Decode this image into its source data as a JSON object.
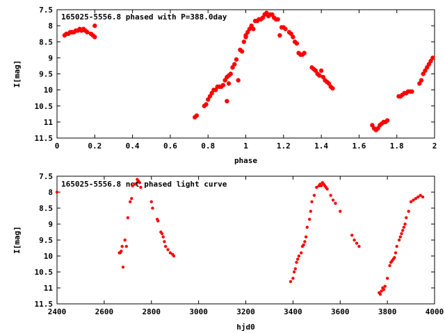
{
  "chart_data": [
    {
      "type": "scatter",
      "title": "165025-5556.8 phased with P=388.0day",
      "xlabel": "phase",
      "ylabel": "I[mag]",
      "xlim": [
        0,
        2
      ],
      "ylim": [
        11.5,
        7.5
      ],
      "y_inverted": true,
      "grid": false,
      "legend": "none",
      "color": "#ff0000",
      "x_ticks": [
        "0",
        "0.2",
        "0.4",
        "0.6",
        "0.8",
        "1",
        "1.2",
        "1.4",
        "1.6",
        "1.8",
        "2"
      ],
      "y_ticks": [
        "7.5",
        "8",
        "8.5",
        "9",
        "9.5",
        "10",
        "10.5",
        "11",
        "11.5"
      ],
      "series": [
        {
          "x": [
            0.04,
            0.05,
            0.06,
            0.07,
            0.08,
            0.09,
            0.1,
            0.11,
            0.12,
            0.13,
            0.14,
            0.15,
            0.16,
            0.18,
            0.19,
            0.2,
            0.2,
            0.73,
            0.74,
            0.78,
            0.79,
            0.8,
            0.81,
            0.82,
            0.83,
            0.84,
            0.85,
            0.86,
            0.87,
            0.88,
            0.89,
            0.9,
            0.9,
            0.91,
            0.91,
            0.92,
            0.93,
            0.94,
            0.95,
            0.96,
            0.97,
            0.98,
            0.99,
            1.0,
            1.0,
            1.01,
            1.02,
            1.03,
            1.04,
            1.05,
            1.06,
            1.07,
            1.08,
            1.09,
            1.1,
            1.11,
            1.12,
            1.13,
            1.14,
            1.15,
            1.16,
            1.17,
            1.18,
            1.19,
            1.2,
            1.21,
            1.23,
            1.24,
            1.25,
            1.26,
            1.27,
            1.28,
            1.29,
            1.3,
            1.31,
            1.35,
            1.36,
            1.37,
            1.38,
            1.39,
            1.4,
            1.41,
            1.42,
            1.43,
            1.44,
            1.45,
            1.46,
            1.67,
            1.68,
            1.69,
            1.7,
            1.71,
            1.72,
            1.73,
            1.74,
            1.75,
            1.81,
            1.82,
            1.83,
            1.84,
            1.85,
            1.86,
            1.87,
            1.88,
            1.92,
            1.93,
            1.94,
            1.95,
            1.96,
            1.97,
            1.98,
            1.99
          ],
          "y": [
            8.3,
            8.25,
            8.25,
            8.2,
            8.2,
            8.2,
            8.15,
            8.15,
            8.1,
            8.15,
            8.1,
            8.15,
            8.2,
            8.25,
            8.3,
            8.0,
            8.35,
            10.85,
            10.8,
            10.5,
            10.45,
            10.3,
            10.2,
            10.1,
            10.0,
            10.0,
            9.9,
            9.9,
            9.9,
            9.85,
            9.7,
            9.6,
            10.35,
            9.55,
            9.8,
            9.5,
            9.3,
            9.2,
            9.05,
            9.7,
            8.75,
            8.8,
            8.5,
            8.3,
            8.35,
            8.2,
            8.1,
            8.0,
            8.1,
            7.85,
            7.85,
            7.8,
            7.8,
            7.75,
            7.65,
            7.6,
            7.7,
            7.65,
            7.65,
            7.75,
            7.8,
            7.8,
            8.3,
            8.05,
            8.05,
            8.1,
            8.2,
            8.25,
            8.35,
            8.5,
            8.55,
            8.85,
            8.9,
            8.9,
            8.85,
            9.3,
            9.35,
            9.4,
            9.5,
            9.55,
            9.4,
            9.6,
            9.7,
            9.75,
            9.8,
            9.9,
            9.95,
            11.1,
            11.2,
            11.25,
            11.2,
            11.1,
            11.05,
            11.0,
            11.0,
            10.95,
            10.2,
            10.2,
            10.15,
            10.1,
            10.1,
            10.05,
            10.05,
            10.05,
            9.8,
            9.7,
            9.5,
            9.4,
            9.3,
            9.2,
            9.1,
            9.0
          ]
        }
      ]
    },
    {
      "type": "scatter",
      "title": "165025-5556.8 not phased light curve",
      "xlabel": "hjd0",
      "ylabel": "I[mag]",
      "xlim": [
        2400,
        4000
      ],
      "ylim": [
        11.5,
        7.5
      ],
      "y_inverted": true,
      "grid": false,
      "legend": "none",
      "color": "#ff0000",
      "x_ticks": [
        "2400",
        "2600",
        "2800",
        "3000",
        "3200",
        "3400",
        "3600",
        "3800",
        "4000"
      ],
      "y_ticks": [
        "7.5",
        "8",
        "8.5",
        "9",
        "9.5",
        "10",
        "10.5",
        "11",
        "11.5"
      ],
      "series": [
        {
          "x": [
            2400,
            2664,
            2668,
            2672,
            2676,
            2680,
            2688,
            2694,
            2700,
            2710,
            2716,
            2720,
            2730,
            2740,
            2745,
            2750,
            2755,
            2800,
            2805,
            2825,
            2828,
            2840,
            2845,
            2850,
            2855,
            2860,
            2870,
            2880,
            2890,
            2895,
            3390,
            3400,
            3405,
            3410,
            3415,
            3420,
            3425,
            3435,
            3440,
            3445,
            3450,
            3455,
            3460,
            3470,
            3475,
            3480,
            3490,
            3500,
            3510,
            3515,
            3520,
            3525,
            3530,
            3535,
            3540,
            3545,
            3560,
            3570,
            3580,
            3600,
            3650,
            3660,
            3670,
            3680,
            3765,
            3770,
            3775,
            3780,
            3785,
            3790,
            3800,
            3810,
            3815,
            3820,
            3825,
            3830,
            3835,
            3840,
            3850,
            3855,
            3860,
            3865,
            3870,
            3875,
            3880,
            3890,
            3900,
            3910,
            3920,
            3930,
            3940,
            3950
          ],
          "y": [
            8.0,
            9.9,
            9.9,
            9.85,
            9.7,
            10.35,
            9.5,
            9.7,
            8.8,
            8.3,
            8.2,
            7.8,
            7.75,
            7.6,
            7.65,
            7.7,
            7.85,
            8.3,
            8.5,
            8.85,
            8.9,
            9.25,
            9.3,
            9.4,
            9.55,
            9.7,
            9.8,
            9.9,
            9.95,
            10.0,
            10.8,
            10.7,
            10.5,
            10.4,
            10.2,
            10.1,
            10.0,
            9.9,
            9.7,
            9.65,
            9.55,
            9.4,
            9.1,
            8.85,
            8.6,
            8.3,
            8.1,
            7.85,
            7.8,
            7.75,
            7.8,
            7.7,
            7.75,
            7.8,
            7.85,
            7.9,
            8.1,
            8.25,
            8.35,
            8.6,
            9.35,
            9.5,
            9.6,
            9.7,
            11.15,
            11.2,
            11.1,
            11.0,
            11.05,
            10.95,
            10.7,
            10.3,
            10.2,
            10.15,
            10.1,
            10.05,
            9.9,
            9.7,
            9.5,
            9.4,
            9.3,
            9.2,
            9.1,
            9.0,
            8.8,
            8.6,
            8.3,
            8.25,
            8.2,
            8.15,
            8.1,
            8.15
          ]
        }
      ]
    }
  ]
}
